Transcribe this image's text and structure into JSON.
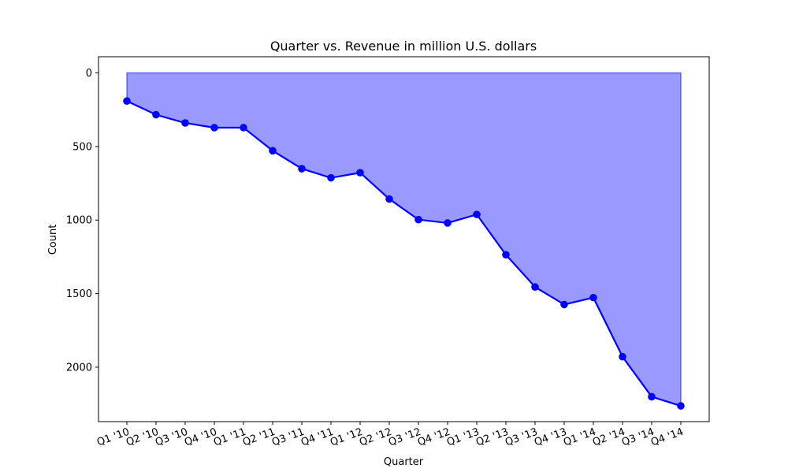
{
  "chart_data": {
    "type": "area",
    "title": "Quarter vs. Revenue in million U.S. dollars",
    "xlabel": "Quarter",
    "ylabel": "Count",
    "y_axis_inverted": true,
    "ylim": [
      2370,
      -110
    ],
    "yticks": [
      0,
      500,
      1000,
      1500,
      2000
    ],
    "grid": false,
    "categories": [
      "Q1 '10",
      "Q2 '10",
      "Q3 '10",
      "Q4 '10",
      "Q1 '11",
      "Q2 '11",
      "Q3 '11",
      "Q4 '11",
      "Q1 '12",
      "Q2 '12",
      "Q3 '12",
      "Q4 '12",
      "Q1 '13",
      "Q2 '13",
      "Q3 '13",
      "Q4 '13",
      "Q1 '14",
      "Q2 '14",
      "Q3 '14",
      "Q4 '14"
    ],
    "series": [
      {
        "values": [
          191,
          284,
          340,
          372,
          372,
          529,
          651,
          713,
          678,
          857,
          997,
          1020,
          962,
          1236,
          1455,
          1574,
          1527,
          1929,
          2201,
          2263
        ],
        "line_color": "#0000ff",
        "fill_color": "#0000ff",
        "fill_opacity": 0.4
      }
    ]
  }
}
